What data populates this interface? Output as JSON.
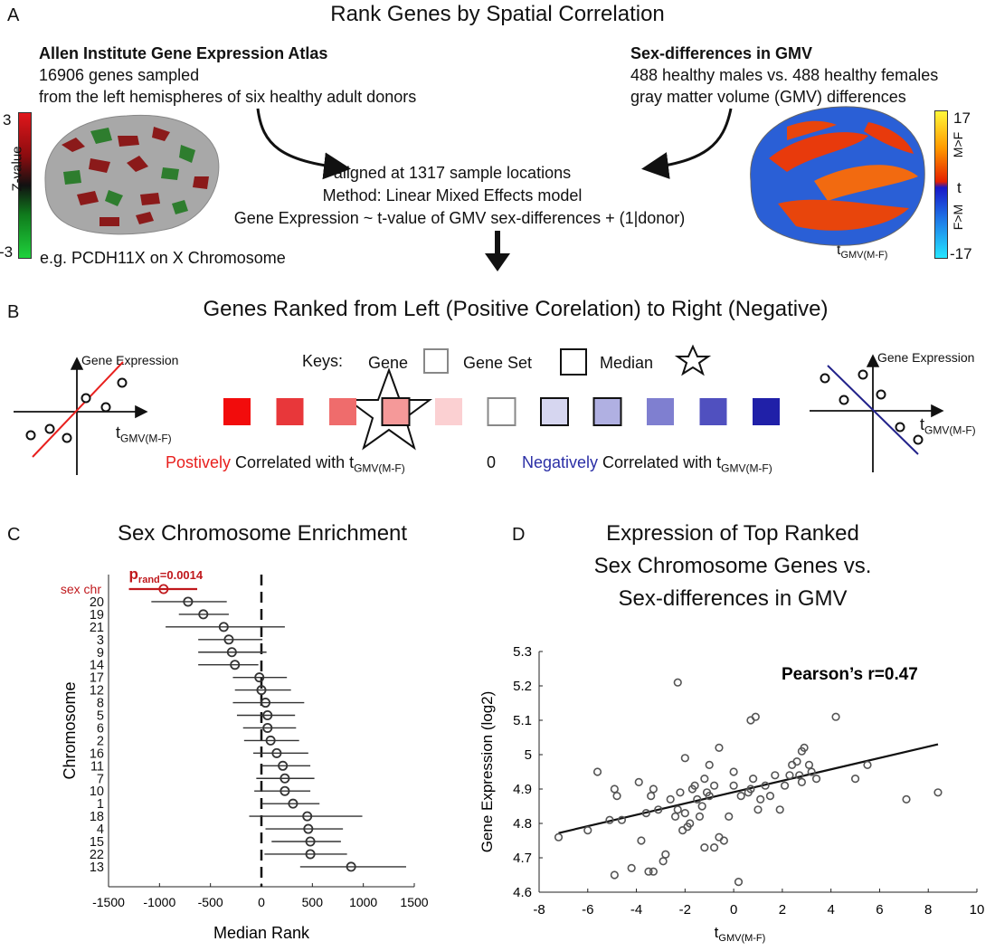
{
  "panelA": {
    "label": "A",
    "title": "Rank Genes by  Spatial Correlation",
    "allen_title": "Allen Institute Gene Expression Atlas",
    "allen_line1": "16906 genes sampled",
    "allen_line2": "from the left hemispheres of six healthy adult donors",
    "sex_title": "Sex-differences in GMV",
    "sex_line1": "488 healthy males vs. 488 healthy females",
    "sex_line2": "gray matter volume (GMV) differences",
    "method_line1": "aligned at 1317 sample locations",
    "method_line2": "Method: Linear Mixed Effects model",
    "method_line3": "Gene Expression ~ t-value of GMV sex-differences + (1|donor)",
    "zbar_label": "Z-value",
    "zbar_max": "3",
    "zbar_min": "-3",
    "example_gene": "e.g. PCDH11X on X Chromosome",
    "tbar_max": "17",
    "tbar_min": "-17",
    "tbar_mid": "t",
    "tbar_upper": "M>F",
    "tbar_lower": "F>M",
    "brain_t_label": "t",
    "brain_t_sub": "GMV(M-F)",
    "colors": {
      "pos": "#e8201e",
      "neg": "#2b2fa6",
      "chart_red": "#c0181c"
    }
  },
  "panelB": {
    "label": "B",
    "title": "Genes Ranked from Left (Positive Corelation) to Right (Negative)",
    "keys_label": "Keys:",
    "key_gene": "Gene",
    "key_geneset": "Gene Set",
    "key_median": "Median",
    "left_axis_label": "Gene Expression",
    "left_t": "t",
    "left_t_sub": "GMV(M-F)",
    "right_axis_label": "Gene Expression",
    "right_t": "t",
    "right_t_sub": "GMV(M-F)",
    "pos_word": "Postively",
    "pos_rest": " Correlated with t",
    "pos_sub": "GMV(M-F)",
    "zero": "0",
    "neg_word": "Negatively",
    "neg_rest": " Correlated with t",
    "neg_sub": "GMV(M-F)",
    "squares": [
      "#f20c0c",
      "#e8373a",
      "#ef6c6c",
      "#f59999",
      "#fbd0d2",
      "#ffffff",
      "#d6d6f0",
      "#b0b0e2",
      "#7f7fd0",
      "#5050bf",
      "#2020a8"
    ]
  },
  "panelC": {
    "label": "C",
    "title": "Sex Chromosome Enrichment"
  },
  "panelD": {
    "label": "D",
    "title_line1": "Expression of Top Ranked",
    "title_line2": "Sex Chromosome Genes vs.",
    "title_line3": "Sex-differences in GMV"
  },
  "chart_data": [
    {
      "type": "scatter",
      "title": "Sex Chromosome Enrichment",
      "xlabel": "Median Rank",
      "ylabel": "Chromosome",
      "xlim": [
        -1500,
        1500
      ],
      "xticks": [
        -1500,
        -1000,
        -500,
        0,
        500,
        1000,
        1500
      ],
      "annotation": "p",
      "annotation_sub": "rand",
      "annotation_value": "=0.0014",
      "categories": [
        "sex chr",
        "20",
        "19",
        "21",
        "3",
        "9",
        "14",
        "17",
        "12",
        "8",
        "5",
        "6",
        "2",
        "16",
        "11",
        "7",
        "10",
        "1",
        "18",
        "4",
        "15",
        "22",
        "13"
      ],
      "medians": [
        -960,
        -720,
        -570,
        -370,
        -320,
        -290,
        -260,
        -20,
        0,
        40,
        60,
        60,
        90,
        150,
        210,
        230,
        230,
        310,
        450,
        460,
        480,
        480,
        880
      ],
      "ci_low": [
        -1300,
        -1080,
        -810,
        -940,
        -620,
        -620,
        -620,
        -280,
        -260,
        -280,
        -240,
        -180,
        -170,
        -80,
        0,
        -50,
        -70,
        0,
        -120,
        40,
        100,
        30,
        380
      ],
      "ci_high": [
        -630,
        -340,
        -320,
        230,
        10,
        50,
        -30,
        250,
        290,
        420,
        330,
        340,
        370,
        460,
        480,
        520,
        480,
        570,
        990,
        800,
        780,
        840,
        1420
      ]
    },
    {
      "type": "scatter",
      "title": "Expression of Top Ranked Sex Chromosome Genes vs. Sex-differences in GMV",
      "xlabel": "t",
      "xlabel_sub": "GMV(M-F)",
      "ylabel": "Gene Expression (log2)",
      "xlim": [
        -8,
        10
      ],
      "ylim": [
        4.6,
        5.3
      ],
      "xticks": [
        -8,
        -6,
        -4,
        -2,
        0,
        2,
        4,
        6,
        8,
        10
      ],
      "yticks": [
        "4.6",
        "4.7",
        "4.8",
        "4.9",
        "5",
        "5.1",
        "5.2",
        "5.3"
      ],
      "annotation": "Pearson’s r=0.47",
      "fit": {
        "x1": -7.2,
        "y1": 4.772,
        "x2": 8.4,
        "y2": 5.03
      },
      "points": [
        [
          -7.2,
          4.76
        ],
        [
          -6.0,
          4.78
        ],
        [
          -5.6,
          4.95
        ],
        [
          -5.1,
          4.81
        ],
        [
          -4.9,
          4.9
        ],
        [
          -4.8,
          4.88
        ],
        [
          -4.9,
          4.65
        ],
        [
          -4.6,
          4.81
        ],
        [
          -4.2,
          4.67
        ],
        [
          -3.9,
          4.92
        ],
        [
          -3.8,
          4.75
        ],
        [
          -3.6,
          4.83
        ],
        [
          -3.5,
          4.66
        ],
        [
          -3.3,
          4.66
        ],
        [
          -3.4,
          4.88
        ],
        [
          -3.3,
          4.9
        ],
        [
          -3.1,
          4.84
        ],
        [
          -2.9,
          4.69
        ],
        [
          -2.8,
          4.71
        ],
        [
          -2.6,
          4.87
        ],
        [
          -2.4,
          4.82
        ],
        [
          -2.3,
          4.84
        ],
        [
          -2.2,
          4.89
        ],
        [
          -2.1,
          4.78
        ],
        [
          -2.0,
          4.83
        ],
        [
          -1.9,
          4.79
        ],
        [
          -1.8,
          4.8
        ],
        [
          -1.7,
          4.9
        ],
        [
          -1.6,
          4.91
        ],
        [
          -1.5,
          4.87
        ],
        [
          -1.4,
          4.82
        ],
        [
          -1.3,
          4.85
        ],
        [
          -1.2,
          4.93
        ],
        [
          -1.2,
          4.73
        ],
        [
          -1.1,
          4.89
        ],
        [
          -1.0,
          4.88
        ],
        [
          -0.8,
          4.91
        ],
        [
          -0.8,
          4.73
        ],
        [
          -0.6,
          4.76
        ],
        [
          -0.4,
          4.75
        ],
        [
          -0.2,
          4.82
        ],
        [
          -2.0,
          4.99
        ],
        [
          -1.0,
          4.97
        ],
        [
          -0.6,
          5.02
        ],
        [
          -2.3,
          5.21
        ],
        [
          0.0,
          4.91
        ],
        [
          0.0,
          4.95
        ],
        [
          0.2,
          4.63
        ],
        [
          0.3,
          4.88
        ],
        [
          0.6,
          4.89
        ],
        [
          0.7,
          4.9
        ],
        [
          0.8,
          4.93
        ],
        [
          0.7,
          5.1
        ],
        [
          0.9,
          5.11
        ],
        [
          1.0,
          4.84
        ],
        [
          1.1,
          4.87
        ],
        [
          1.3,
          4.91
        ],
        [
          1.5,
          4.88
        ],
        [
          1.7,
          4.94
        ],
        [
          1.9,
          4.84
        ],
        [
          2.1,
          4.91
        ],
        [
          2.3,
          4.94
        ],
        [
          2.4,
          4.97
        ],
        [
          2.6,
          4.98
        ],
        [
          2.7,
          4.94
        ],
        [
          2.8,
          5.01
        ],
        [
          2.9,
          5.02
        ],
        [
          2.8,
          4.92
        ],
        [
          3.1,
          4.97
        ],
        [
          3.2,
          4.95
        ],
        [
          3.4,
          4.93
        ],
        [
          4.2,
          5.11
        ],
        [
          5.0,
          4.93
        ],
        [
          5.5,
          4.97
        ],
        [
          7.1,
          4.87
        ],
        [
          8.4,
          4.89
        ]
      ]
    }
  ]
}
